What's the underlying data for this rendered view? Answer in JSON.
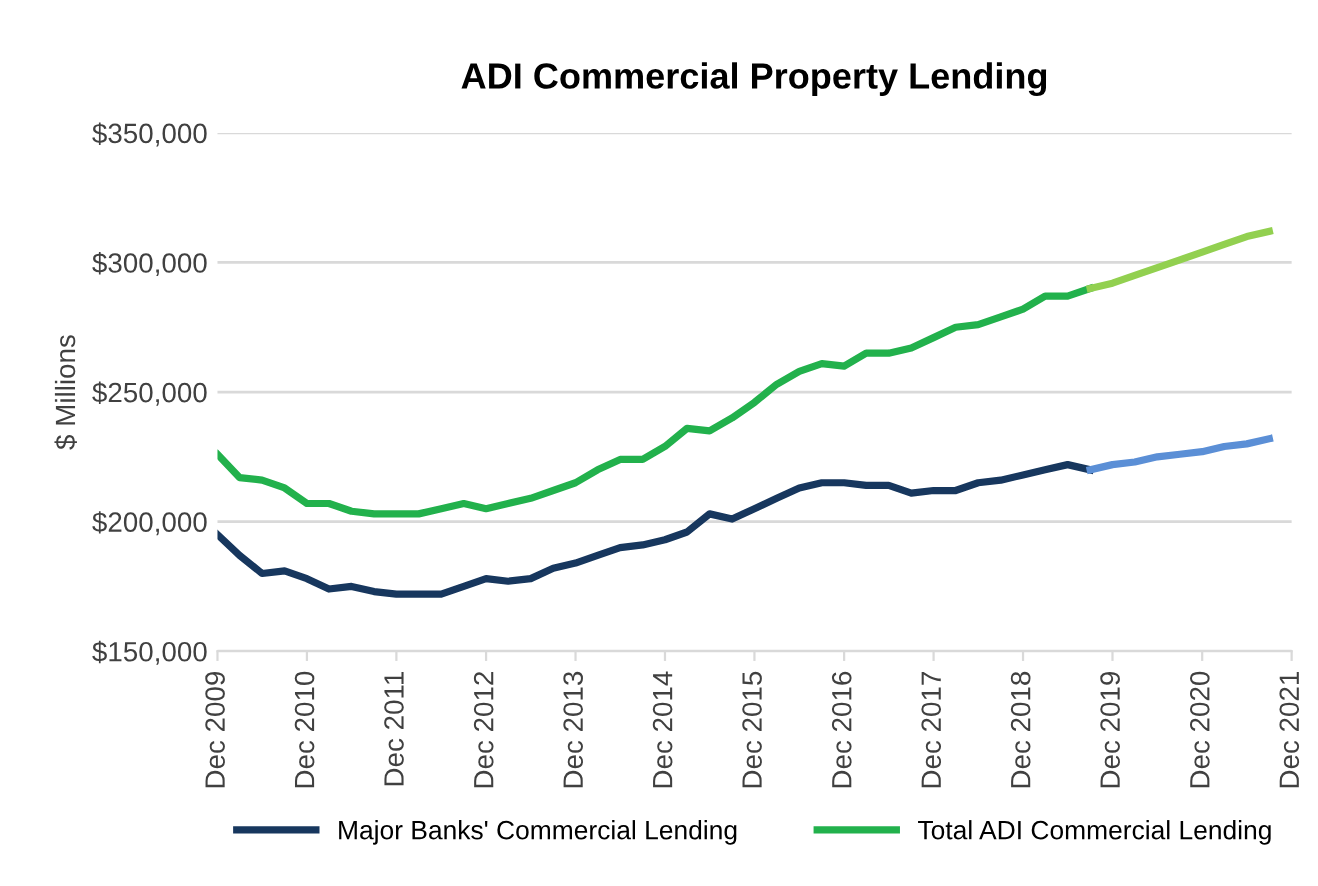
{
  "chart_data": {
    "type": "line",
    "title": "ADI Commercial Property Lending",
    "ylabel": "$ Millions",
    "series": [
      {
        "name": "Major Banks' Commercial Lending",
        "color": "#17375e",
        "x": [
          "2009-12",
          "2010-03",
          "2010-06",
          "2010-09",
          "2010-12",
          "2011-03",
          "2011-06",
          "2011-09",
          "2011-12",
          "2012-03",
          "2012-06",
          "2012-09",
          "2012-12",
          "2013-03",
          "2013-06",
          "2013-09",
          "2013-12",
          "2014-03",
          "2014-06",
          "2014-09",
          "2014-12",
          "2015-03",
          "2015-06",
          "2015-09",
          "2015-12",
          "2016-03",
          "2016-06",
          "2016-09",
          "2016-12",
          "2017-03",
          "2017-06",
          "2017-09",
          "2017-12",
          "2018-03",
          "2018-06",
          "2018-09",
          "2018-12",
          "2019-03",
          "2019-06",
          "2019-09"
        ],
        "values": [
          195000,
          187000,
          180000,
          181000,
          178000,
          174000,
          175000,
          173000,
          172000,
          172000,
          172000,
          175000,
          178000,
          177000,
          178000,
          182000,
          184000,
          187000,
          190000,
          191000,
          193000,
          196000,
          203000,
          201000,
          205000,
          209000,
          213000,
          215000,
          215000,
          214000,
          214000,
          211000,
          212000,
          212000,
          215000,
          216000,
          218000,
          220000,
          222000,
          220000
        ]
      },
      {
        "name": "Total ADI Commercial Lending",
        "color": "#22b14c",
        "x": [
          "2009-12",
          "2010-03",
          "2010-06",
          "2010-09",
          "2010-12",
          "2011-03",
          "2011-06",
          "2011-09",
          "2011-12",
          "2012-03",
          "2012-06",
          "2012-09",
          "2012-12",
          "2013-03",
          "2013-06",
          "2013-09",
          "2013-12",
          "2014-03",
          "2014-06",
          "2014-09",
          "2014-12",
          "2015-03",
          "2015-06",
          "2015-09",
          "2015-12",
          "2016-03",
          "2016-06",
          "2016-09",
          "2016-12",
          "2017-03",
          "2017-06",
          "2017-09",
          "2017-12",
          "2018-03",
          "2018-06",
          "2018-09",
          "2018-12",
          "2019-03",
          "2019-06",
          "2019-09"
        ],
        "values": [
          226000,
          217000,
          216000,
          213000,
          207000,
          207000,
          204000,
          203000,
          203000,
          203000,
          205000,
          207000,
          205000,
          207000,
          209000,
          212000,
          215000,
          220000,
          224000,
          224000,
          229000,
          236000,
          235000,
          240000,
          246000,
          253000,
          258000,
          261000,
          260000,
          265000,
          265000,
          267000,
          271000,
          275000,
          276000,
          279000,
          282000,
          287000,
          287000,
          290000
        ]
      },
      {
        "color": "#5b8fd6",
        "x": [
          "2019-09",
          "2019-12",
          "2020-03",
          "2020-06",
          "2020-09",
          "2020-12",
          "2021-03",
          "2021-06",
          "2021-09"
        ],
        "values": [
          220000,
          222000,
          223000,
          225000,
          226000,
          227000,
          229000,
          230000,
          232000
        ]
      },
      {
        "color": "#92d050",
        "x": [
          "2019-09",
          "2019-12",
          "2020-03",
          "2020-06",
          "2020-09",
          "2020-12",
          "2021-03",
          "2021-06",
          "2021-09"
        ],
        "values": [
          290000,
          292000,
          295000,
          298000,
          301000,
          304000,
          307000,
          310000,
          312000
        ]
      }
    ],
    "xlim": [
      "2009-12",
      "2021-12"
    ],
    "xticks": [
      {
        "value": "2009-12",
        "label": "Dec 2009"
      },
      {
        "value": "2010-12",
        "label": "Dec 2010"
      },
      {
        "value": "2011-12",
        "label": "Dec 2011"
      },
      {
        "value": "2012-12",
        "label": "Dec 2012"
      },
      {
        "value": "2013-12",
        "label": "Dec 2013"
      },
      {
        "value": "2014-12",
        "label": "Dec 2014"
      },
      {
        "value": "2015-12",
        "label": "Dec 2015"
      },
      {
        "value": "2016-12",
        "label": "Dec 2016"
      },
      {
        "value": "2017-12",
        "label": "Dec 2017"
      },
      {
        "value": "2018-12",
        "label": "Dec 2018"
      },
      {
        "value": "2019-12",
        "label": "Dec 2019"
      },
      {
        "value": "2020-12",
        "label": "Dec 2020"
      },
      {
        "value": "2021-12",
        "label": "Dec 2021"
      }
    ],
    "ylim": [
      150000,
      350000
    ],
    "yticks": [
      {
        "value": 150000,
        "label": "$150,000"
      },
      {
        "value": 200000,
        "label": "$200,000"
      },
      {
        "value": 250000,
        "label": "$250,000"
      },
      {
        "value": 300000,
        "label": "$300,000"
      },
      {
        "value": 350000,
        "label": "$350,000"
      }
    ],
    "grid": "y",
    "legend": "bottom",
    "marker": "none",
    "line_style": "solid"
  }
}
